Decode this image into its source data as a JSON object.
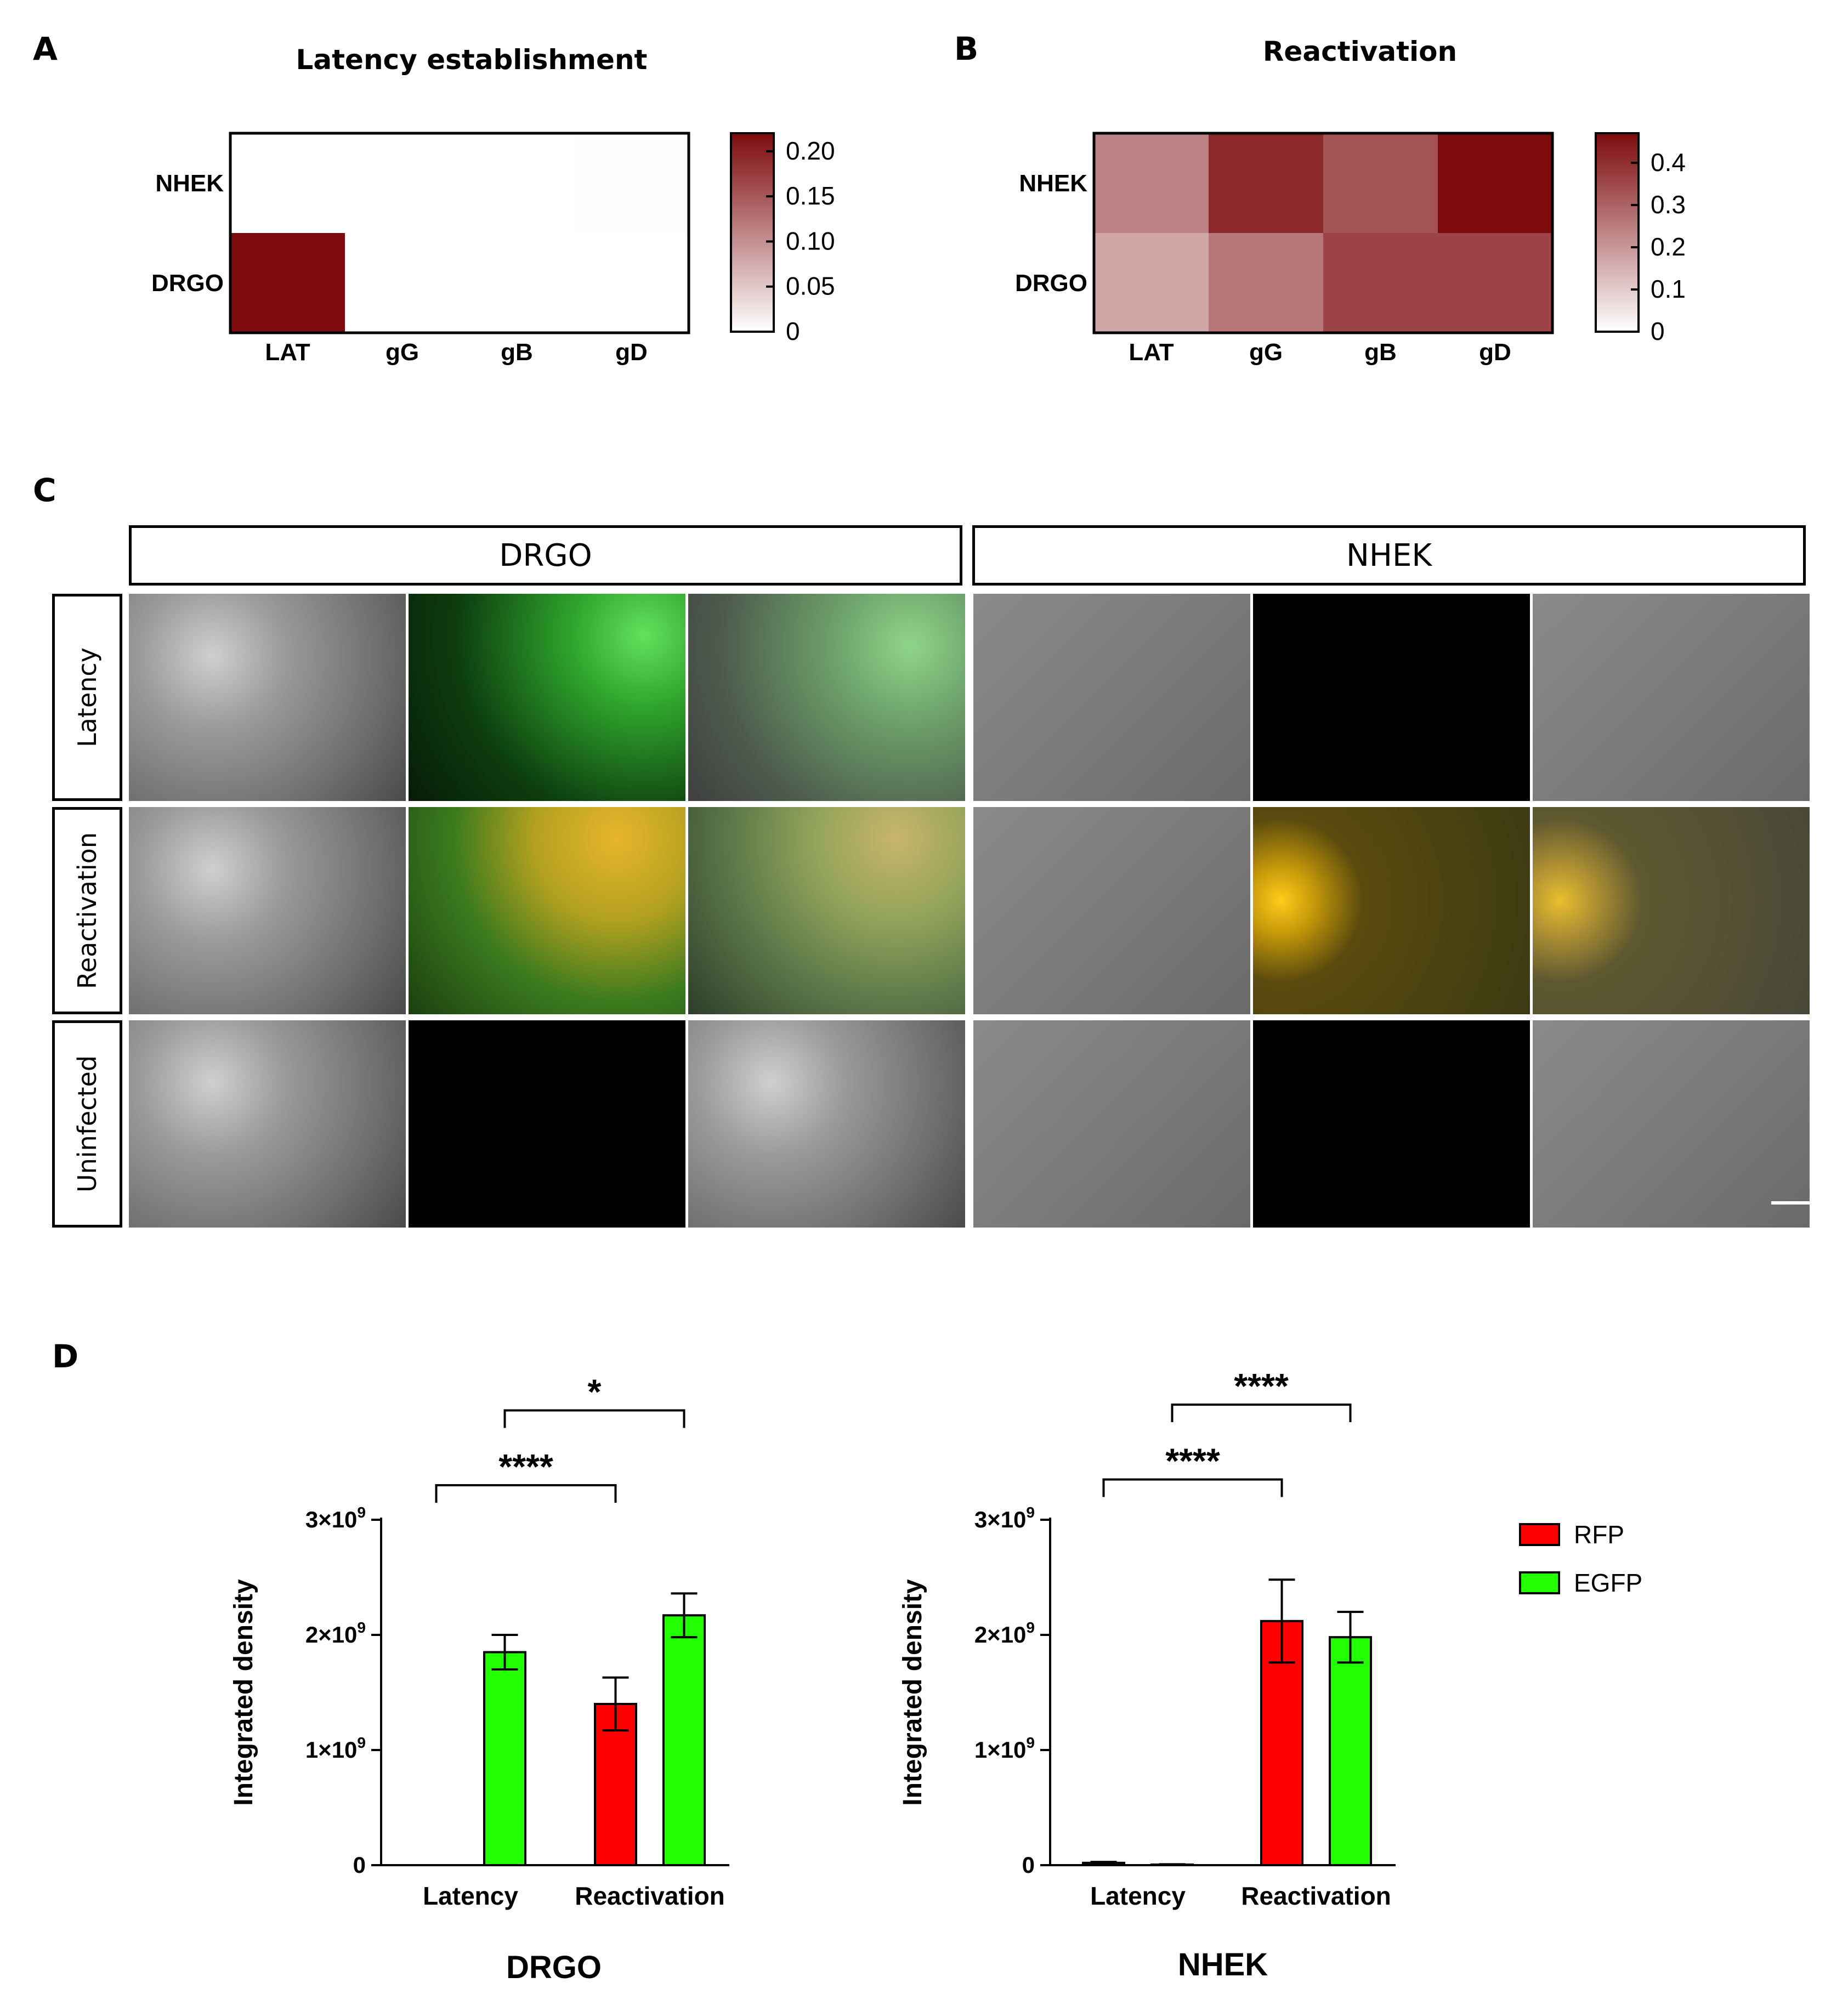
{
  "panels": {
    "A": "A",
    "B": "B",
    "C": "C",
    "D": "D"
  },
  "heatmap_colors": {
    "low": "#ffffff",
    "high": "#7d0a0c"
  },
  "chart_data": [
    {
      "type": "heatmap",
      "title": "Latency establishment",
      "rows": [
        "NHEK",
        "DRGO"
      ],
      "columns": [
        "LAT",
        "gG",
        "gB",
        "gD"
      ],
      "values": [
        [
          0,
          0,
          0,
          0.003
        ],
        [
          0.22,
          0,
          0,
          0
        ]
      ],
      "colorbar": {
        "min": 0,
        "max": 0.22,
        "ticks": [
          "0",
          "0.05",
          "0.10",
          "0.15",
          "0.20"
        ]
      }
    },
    {
      "type": "heatmap",
      "title": "Reactivation",
      "rows": [
        "NHEK",
        "DRGO"
      ],
      "columns": [
        "LAT",
        "gG",
        "gB",
        "gD"
      ],
      "values": [
        [
          0.24,
          0.41,
          0.33,
          0.47
        ],
        [
          0.17,
          0.26,
          0.36,
          0.36
        ]
      ],
      "colorbar": {
        "min": 0,
        "max": 0.47,
        "ticks": [
          "0",
          "0.1",
          "0.2",
          "0.3",
          "0.4"
        ]
      }
    },
    {
      "type": "bar",
      "title": "DRGO",
      "ylabel": "Integrated density",
      "categories": [
        "Latency",
        "Reactivation"
      ],
      "ylim": [
        0,
        3000000000
      ],
      "yticks": [
        {
          "v": 0,
          "base": "0",
          "exp": ""
        },
        {
          "v": 1000000000,
          "base": "1×10",
          "exp": "9"
        },
        {
          "v": 2000000000,
          "base": "2×10",
          "exp": "9"
        },
        {
          "v": 3000000000,
          "base": "3×10",
          "exp": "9"
        }
      ],
      "series": [
        {
          "name": "RFP",
          "color": "#ff0000",
          "values": [
            0,
            1400000000
          ],
          "err": [
            0,
            230000000
          ]
        },
        {
          "name": "EGFP",
          "color": "#22ff00",
          "values": [
            1850000000,
            2170000000
          ],
          "err": [
            150000000,
            190000000
          ]
        }
      ],
      "significance": [
        {
          "label": "****",
          "from": [
            0,
            0
          ],
          "to": [
            1,
            0
          ],
          "level": 3300000000
        },
        {
          "label": "*",
          "from": [
            0,
            1
          ],
          "to": [
            1,
            1
          ],
          "level": 3950000000
        }
      ]
    },
    {
      "type": "bar",
      "title": "NHEK",
      "ylabel": "Integrated density",
      "categories": [
        "Latency",
        "Reactivation"
      ],
      "ylim": [
        0,
        3000000000
      ],
      "yticks": [
        {
          "v": 0,
          "base": "0",
          "exp": ""
        },
        {
          "v": 1000000000,
          "base": "1×10",
          "exp": "9"
        },
        {
          "v": 2000000000,
          "base": "2×10",
          "exp": "9"
        },
        {
          "v": 3000000000,
          "base": "3×10",
          "exp": "9"
        }
      ],
      "series": [
        {
          "name": "RFP",
          "color": "#ff0000",
          "values": [
            20000000,
            2120000000
          ],
          "err": [
            8000000,
            360000000
          ]
        },
        {
          "name": "EGFP",
          "color": "#22ff00",
          "values": [
            5000000,
            1980000000
          ],
          "err": [
            3000000,
            220000000
          ]
        }
      ],
      "significance": [
        {
          "label": "****",
          "from": [
            0,
            0
          ],
          "to": [
            1,
            0
          ],
          "level": 3350000000
        },
        {
          "label": "****",
          "from": [
            0,
            1
          ],
          "to": [
            1,
            1
          ],
          "level": 4000000000
        }
      ]
    }
  ],
  "panel_c": {
    "groups": [
      "DRGO",
      "NHEK"
    ],
    "rows": [
      "Latency",
      "Reactivation",
      "Uninfected"
    ]
  },
  "legend": [
    {
      "name": "RFP",
      "color": "#ff0000"
    },
    {
      "name": "EGFP",
      "color": "#22ff00"
    }
  ]
}
